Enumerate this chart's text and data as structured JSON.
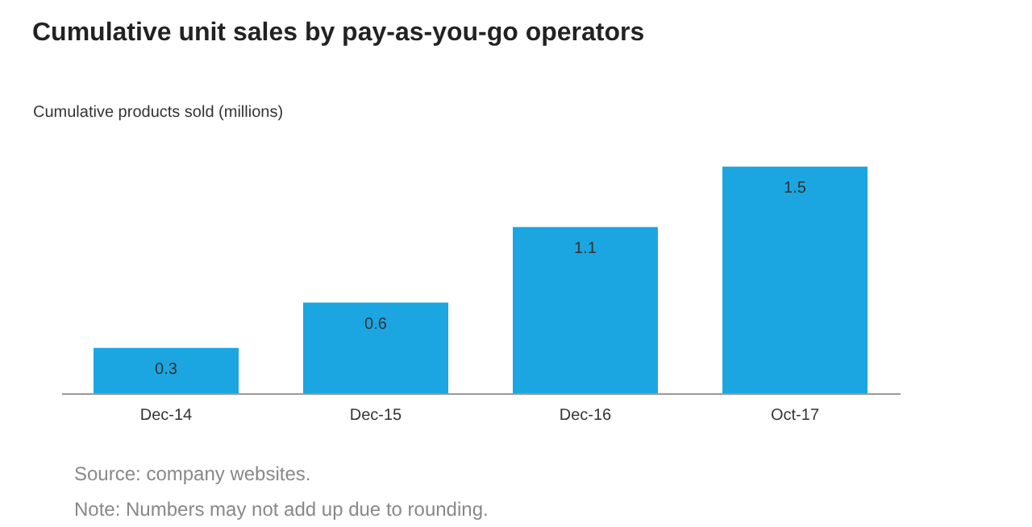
{
  "chart_data": {
    "type": "bar",
    "title": "Cumulative unit sales by pay-as-you-go operators",
    "ylabel": "Cumulative products sold (millions)",
    "categories": [
      "Dec-14",
      "Dec-15",
      "Dec-16",
      "Oct-17"
    ],
    "values": [
      0.3,
      0.6,
      1.1,
      1.5
    ],
    "color": "#1ba6e2",
    "data_labels": true,
    "grid": false,
    "annotations": [
      "Source: company websites.",
      "Note: Numbers may not add up due to rounding."
    ]
  }
}
